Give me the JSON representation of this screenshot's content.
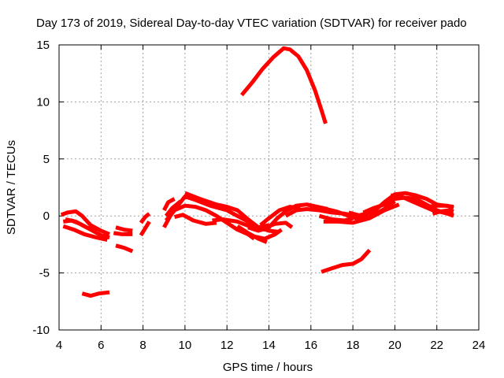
{
  "chart_data": {
    "type": "scatter",
    "title": "Day 173 of 2019, Sidereal Day-to-day VTEC variation (SDTVAR) for receiver pado",
    "xlabel": "GPS time / hours",
    "ylabel": "SDTVAR / TECUs",
    "xlim": [
      4,
      24
    ],
    "ylim": [
      -10,
      15
    ],
    "xticks": [
      "4",
      "6",
      "8",
      "10",
      "12",
      "14",
      "16",
      "18",
      "20",
      "22",
      "24"
    ],
    "yticks": [
      "-10",
      "-5",
      "0",
      "5",
      "10",
      "15"
    ],
    "grid": true,
    "color": "#ff0000",
    "series": [
      {
        "name": "arc-01",
        "points": [
          [
            4.1,
            0.1
          ],
          [
            4.4,
            0.3
          ],
          [
            4.8,
            0.4
          ],
          [
            5.1,
            0.0
          ],
          [
            5.5,
            -0.8
          ],
          [
            6.0,
            -1.3
          ],
          [
            6.4,
            -1.6
          ]
        ]
      },
      {
        "name": "arc-02",
        "points": [
          [
            4.2,
            -0.5
          ],
          [
            4.6,
            -0.4
          ],
          [
            5.0,
            -0.7
          ],
          [
            5.5,
            -1.2
          ],
          [
            6.0,
            -1.7
          ],
          [
            6.4,
            -1.9
          ]
        ]
      },
      {
        "name": "arc-03",
        "points": [
          [
            4.2,
            -0.9
          ],
          [
            4.7,
            -1.2
          ],
          [
            5.2,
            -1.6
          ],
          [
            5.8,
            -1.9
          ],
          [
            6.3,
            -2.1
          ]
        ]
      },
      {
        "name": "arc-04",
        "points": [
          [
            4.3,
            -0.3
          ],
          [
            4.8,
            -0.5
          ],
          [
            5.3,
            -1.0
          ],
          [
            5.8,
            -1.3
          ]
        ]
      },
      {
        "name": "arc-05",
        "points": [
          [
            6.7,
            -1.0
          ],
          [
            7.1,
            -1.2
          ],
          [
            7.5,
            -1.3
          ]
        ]
      },
      {
        "name": "arc-06",
        "points": [
          [
            6.6,
            -1.5
          ],
          [
            7.0,
            -1.6
          ],
          [
            7.5,
            -1.6
          ]
        ]
      },
      {
        "name": "arc-07",
        "points": [
          [
            6.7,
            -2.6
          ],
          [
            7.1,
            -2.8
          ],
          [
            7.5,
            -3.1
          ]
        ]
      },
      {
        "name": "arc-08",
        "points": [
          [
            5.1,
            -6.8
          ],
          [
            5.5,
            -7.0
          ],
          [
            5.9,
            -6.8
          ],
          [
            6.4,
            -6.7
          ]
        ]
      },
      {
        "name": "arc-09",
        "points": [
          [
            7.9,
            -1.7
          ],
          [
            8.1,
            -1.1
          ],
          [
            8.3,
            -0.5
          ]
        ]
      },
      {
        "name": "arc-10",
        "points": [
          [
            7.9,
            -0.6
          ],
          [
            8.1,
            -0.1
          ],
          [
            8.3,
            0.2
          ]
        ]
      },
      {
        "name": "arc-11",
        "points": [
          [
            9.0,
            -1.0
          ],
          [
            9.3,
            0.0
          ],
          [
            9.7,
            1.0
          ],
          [
            10.0,
            1.7
          ],
          [
            10.5,
            1.4
          ],
          [
            11.2,
            0.9
          ],
          [
            12.0,
            0.5
          ],
          [
            13.0,
            -0.5
          ],
          [
            13.5,
            -1.0
          ],
          [
            14.0,
            -0.8
          ]
        ]
      },
      {
        "name": "arc-12",
        "points": [
          [
            9.1,
            -0.4
          ],
          [
            9.5,
            0.5
          ],
          [
            10.0,
            0.9
          ],
          [
            10.5,
            0.8
          ],
          [
            11.0,
            0.5
          ],
          [
            11.5,
            0.0
          ],
          [
            12.0,
            -0.6
          ],
          [
            12.5,
            -1.2
          ],
          [
            13.0,
            -1.6
          ],
          [
            13.3,
            -2.0
          ]
        ]
      },
      {
        "name": "arc-13",
        "points": [
          [
            9.0,
            0.5
          ],
          [
            9.2,
            1.2
          ],
          [
            9.5,
            1.5
          ]
        ]
      },
      {
        "name": "arc-14",
        "points": [
          [
            9.1,
            0.0
          ],
          [
            9.4,
            0.7
          ],
          [
            9.8,
            1.3
          ]
        ]
      },
      {
        "name": "arc-15",
        "points": [
          [
            9.5,
            -0.1
          ],
          [
            9.9,
            0.1
          ],
          [
            10.4,
            -0.4
          ],
          [
            11.0,
            -0.7
          ],
          [
            11.5,
            -0.6
          ]
        ]
      },
      {
        "name": "arc-16",
        "points": [
          [
            10.0,
            2.0
          ],
          [
            10.7,
            1.5
          ],
          [
            11.5,
            1.0
          ],
          [
            12.0,
            0.8
          ],
          [
            12.5,
            0.5
          ],
          [
            13.0,
            -0.3
          ],
          [
            13.5,
            -1.0
          ],
          [
            14.0,
            -1.3
          ],
          [
            14.5,
            -1.4
          ]
        ]
      },
      {
        "name": "arc-17",
        "points": [
          [
            11.3,
            -0.4
          ],
          [
            11.8,
            -0.3
          ],
          [
            12.5,
            -0.5
          ],
          [
            13.2,
            -1.0
          ],
          [
            13.8,
            -1.2
          ]
        ]
      },
      {
        "name": "arc-18",
        "points": [
          [
            12.5,
            -0.9
          ],
          [
            13.0,
            -1.5
          ],
          [
            13.5,
            -2.0
          ],
          [
            13.9,
            -2.3
          ]
        ]
      },
      {
        "name": "arc-19",
        "points": [
          [
            13.0,
            -1.0
          ],
          [
            13.5,
            -1.3
          ],
          [
            14.0,
            -1.0
          ],
          [
            14.4,
            -0.2
          ],
          [
            14.8,
            0.4
          ],
          [
            15.3,
            0.9
          ],
          [
            15.8,
            1.0
          ],
          [
            16.3,
            0.8
          ],
          [
            16.8,
            0.6
          ]
        ]
      },
      {
        "name": "arc-20",
        "points": [
          [
            13.3,
            -1.8
          ],
          [
            13.8,
            -2.0
          ],
          [
            14.3,
            -1.6
          ],
          [
            14.6,
            -1.2
          ]
        ]
      },
      {
        "name": "arc-21",
        "points": [
          [
            13.6,
            -0.8
          ],
          [
            14.0,
            -0.2
          ],
          [
            14.5,
            0.5
          ],
          [
            15.0,
            0.8
          ],
          [
            15.5,
            0.7
          ]
        ]
      },
      {
        "name": "arc-22",
        "points": [
          [
            13.8,
            -1.0
          ],
          [
            14.3,
            -0.7
          ],
          [
            14.8,
            -0.6
          ],
          [
            15.1,
            -1.0
          ]
        ]
      },
      {
        "name": "arc-23",
        "points": [
          [
            14.8,
            0.0
          ],
          [
            15.3,
            0.5
          ],
          [
            15.8,
            0.6
          ],
          [
            16.4,
            0.5
          ],
          [
            17.0,
            0.3
          ],
          [
            17.6,
            0.2
          ],
          [
            18.2,
            0.0
          ],
          [
            18.8,
            0.3
          ]
        ]
      },
      {
        "name": "arc-24",
        "points": [
          [
            16.4,
            0.0
          ],
          [
            17.0,
            -0.3
          ],
          [
            17.6,
            -0.4
          ],
          [
            18.0,
            -0.2
          ]
        ]
      },
      {
        "name": "arc-25",
        "points": [
          [
            15.8,
            1.0
          ],
          [
            16.5,
            0.7
          ],
          [
            17.2,
            0.4
          ],
          [
            17.8,
            0.0
          ],
          [
            18.3,
            -0.3
          ],
          [
            18.8,
            -0.1
          ],
          [
            19.5,
            0.6
          ],
          [
            20.0,
            1.3
          ]
        ]
      },
      {
        "name": "arc-26",
        "points": [
          [
            16.6,
            -0.5
          ],
          [
            17.3,
            -0.5
          ],
          [
            18.0,
            -0.6
          ],
          [
            18.8,
            -0.2
          ],
          [
            19.5,
            0.5
          ],
          [
            20.2,
            1.0
          ]
        ]
      },
      {
        "name": "arc-27",
        "points": [
          [
            17.8,
            0.3
          ],
          [
            18.4,
            0.0
          ],
          [
            19.0,
            0.4
          ],
          [
            19.5,
            1.2
          ],
          [
            20.0,
            1.9
          ],
          [
            20.5,
            2.0
          ],
          [
            21.0,
            1.8
          ],
          [
            21.5,
            1.5
          ],
          [
            22.0,
            1.0
          ],
          [
            22.8,
            0.8
          ]
        ]
      },
      {
        "name": "arc-28",
        "points": [
          [
            18.5,
            0.3
          ],
          [
            19.0,
            0.7
          ],
          [
            19.5,
            1.0
          ],
          [
            20.0,
            1.5
          ],
          [
            20.5,
            1.6
          ],
          [
            21.0,
            1.5
          ],
          [
            21.5,
            1.0
          ],
          [
            22.0,
            0.5
          ],
          [
            22.5,
            0.2
          ],
          [
            22.8,
            0.0
          ]
        ]
      },
      {
        "name": "arc-29",
        "points": [
          [
            19.8,
            1.8
          ],
          [
            20.3,
            1.7
          ],
          [
            20.8,
            1.3
          ],
          [
            21.3,
            0.9
          ],
          [
            21.8,
            0.5
          ],
          [
            22.3,
            0.3
          ],
          [
            22.8,
            0.1
          ]
        ]
      },
      {
        "name": "arc-30",
        "points": [
          [
            21.5,
            0.8
          ],
          [
            22.0,
            0.9
          ],
          [
            22.5,
            0.9
          ],
          [
            22.8,
            0.7
          ]
        ]
      },
      {
        "name": "arc-31",
        "points": [
          [
            21.8,
            0.2
          ],
          [
            22.2,
            0.4
          ],
          [
            22.6,
            0.5
          ],
          [
            22.8,
            0.4
          ]
        ]
      },
      {
        "name": "arc-32",
        "points": [
          [
            16.5,
            -4.9
          ],
          [
            17.0,
            -4.6
          ],
          [
            17.5,
            -4.3
          ],
          [
            18.0,
            -4.2
          ],
          [
            18.4,
            -3.8
          ],
          [
            18.8,
            -3.0
          ]
        ]
      },
      {
        "name": "arc-33",
        "points": [
          [
            12.7,
            10.6
          ],
          [
            13.2,
            11.7
          ],
          [
            13.7,
            12.9
          ],
          [
            14.2,
            13.9
          ],
          [
            14.7,
            14.7
          ],
          [
            15.0,
            14.6
          ],
          [
            15.4,
            14.0
          ],
          [
            15.8,
            12.8
          ],
          [
            16.2,
            11.0
          ],
          [
            16.5,
            9.3
          ],
          [
            16.7,
            8.1
          ]
        ]
      }
    ]
  }
}
